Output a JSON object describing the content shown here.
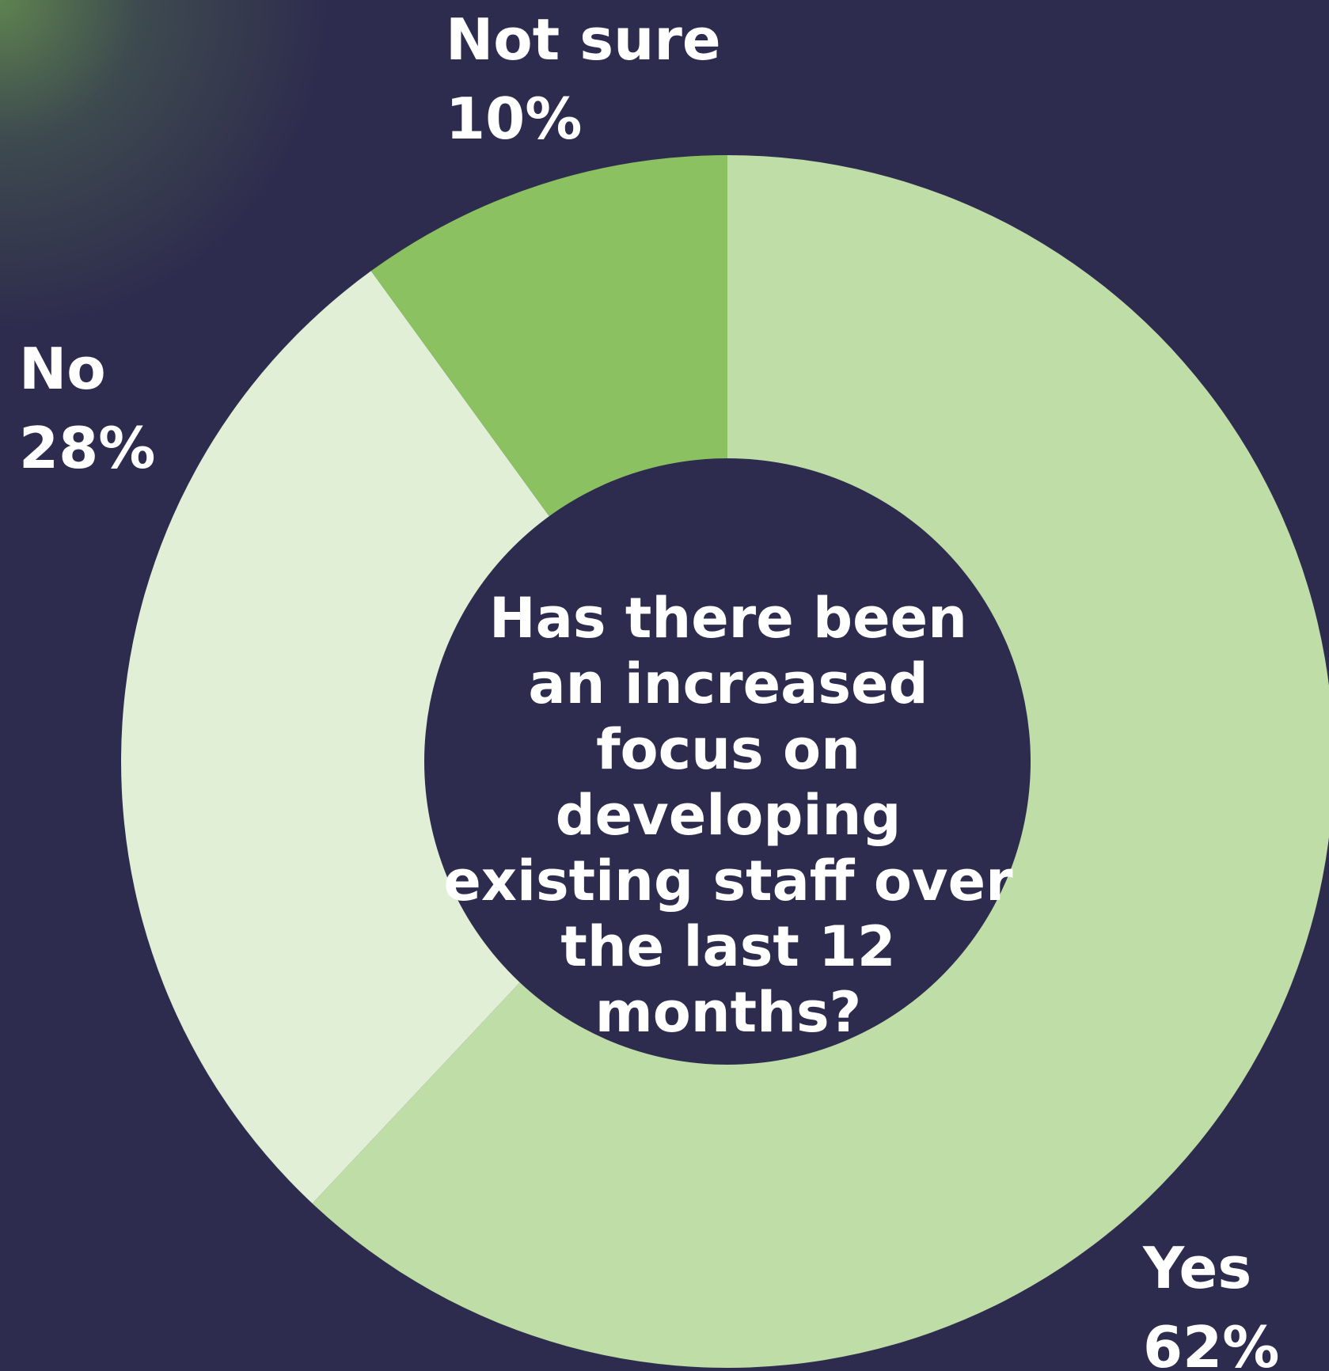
{
  "chart_data": {
    "type": "pie",
    "variant": "donut",
    "title": "Has there been an increased focus on developing existing staff over the last 12 months?",
    "categories": [
      "Yes",
      "No",
      "Not sure"
    ],
    "values": [
      62,
      28,
      10
    ],
    "value_labels": [
      "62%",
      "28%",
      "10%"
    ],
    "colors": [
      "#bfdda7",
      "#e1efd6",
      "#8bc160"
    ],
    "legend": "none"
  },
  "colors": {
    "background": "#2e2c4e",
    "text": "#ffffff"
  }
}
